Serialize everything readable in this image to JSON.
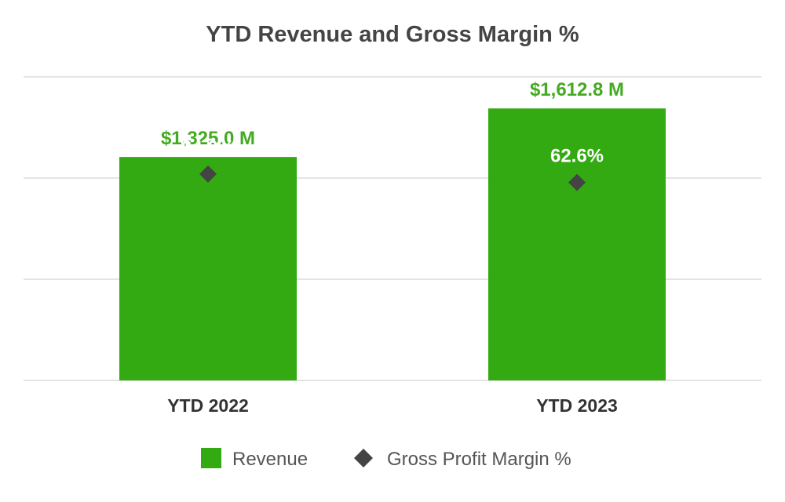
{
  "chart_data": {
    "type": "bar",
    "title": "YTD Revenue and Gross Margin %",
    "xlabel": "",
    "ylabel": "",
    "categories": [
      "YTD 2022",
      "YTD 2023"
    ],
    "ylim": [
      0,
      1800
    ],
    "grid": true,
    "legend_position": "bottom-center",
    "series": [
      {
        "name": "Revenue",
        "kind": "bar",
        "values": [
          1325.0,
          1612.8
        ],
        "labels": [
          "$1,325.0 M",
          "$1,612.8 M"
        ],
        "color": "#33AA11",
        "label_color": "#44AA22"
      },
      {
        "name": "Gross Profit Margin %",
        "kind": "marker",
        "marker": "diamond",
        "values": [
          64.0,
          62.6
        ],
        "labels": [
          "64.0%",
          "62.6%"
        ],
        "ylim": [
          30,
          80
        ],
        "color": "#444444"
      }
    ]
  }
}
